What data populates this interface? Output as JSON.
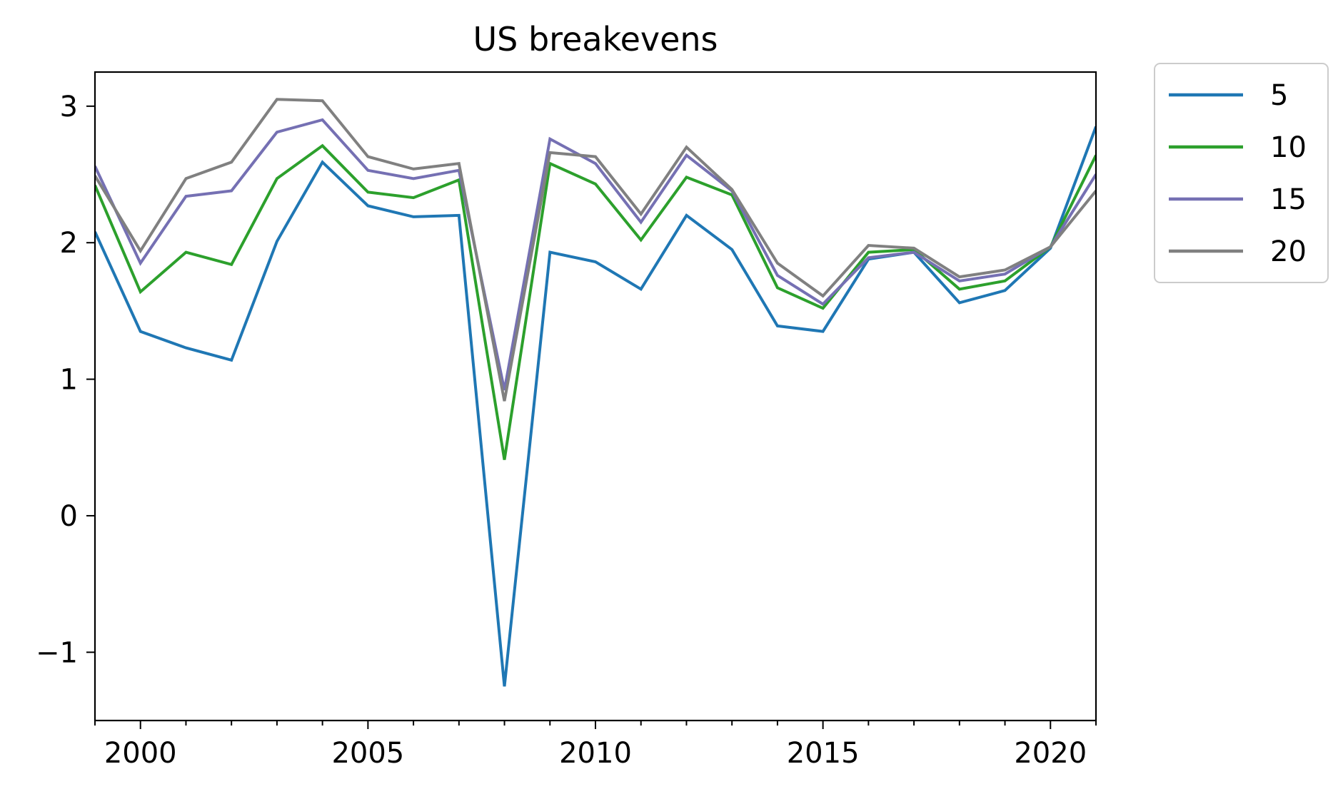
{
  "chart_data": {
    "type": "line",
    "title": "US breakevens",
    "xlabel": "",
    "ylabel": "",
    "x": [
      1999,
      2000,
      2001,
      2002,
      2003,
      2004,
      2005,
      2006,
      2007,
      2008,
      2009,
      2010,
      2011,
      2012,
      2013,
      2014,
      2015,
      2016,
      2017,
      2018,
      2019,
      2020,
      2021
    ],
    "xlim": [
      1999,
      2021
    ],
    "ylim": [
      -1.5,
      3.25
    ],
    "xticks": [
      2000,
      2005,
      2010,
      2015,
      2020
    ],
    "xtick_labels": [
      "2000",
      "2005",
      "2010",
      "2015",
      "2020"
    ],
    "yticks": [
      -1,
      0,
      1,
      2,
      3
    ],
    "ytick_labels": [
      "−1",
      "0",
      "1",
      "2",
      "3"
    ],
    "grid": false,
    "legend_position": "outside-top-right",
    "series": [
      {
        "name": "5",
        "color": "#1f77b4",
        "values": [
          2.08,
          1.35,
          1.23,
          1.14,
          2.01,
          2.59,
          2.27,
          2.19,
          2.2,
          -1.25,
          1.93,
          1.86,
          1.66,
          2.2,
          1.95,
          1.39,
          1.35,
          1.88,
          1.93,
          1.56,
          1.65,
          1.96,
          2.85
        ]
      },
      {
        "name": "10",
        "color": "#2ca02c",
        "values": [
          2.42,
          1.64,
          1.93,
          1.84,
          2.47,
          2.71,
          2.37,
          2.33,
          2.46,
          0.41,
          2.58,
          2.43,
          2.02,
          2.48,
          2.35,
          1.67,
          1.52,
          1.93,
          1.95,
          1.66,
          1.72,
          1.97,
          2.64
        ]
      },
      {
        "name": "15",
        "color": "#7570b3",
        "values": [
          2.56,
          1.85,
          2.34,
          2.38,
          2.81,
          2.9,
          2.53,
          2.47,
          2.53,
          0.92,
          2.76,
          2.58,
          2.15,
          2.64,
          2.38,
          1.76,
          1.55,
          1.89,
          1.93,
          1.72,
          1.77,
          1.97,
          2.5
        ]
      },
      {
        "name": "20",
        "color": "#808080",
        "values": [
          2.49,
          1.94,
          2.47,
          2.59,
          3.05,
          3.04,
          2.63,
          2.54,
          2.58,
          0.84,
          2.66,
          2.63,
          2.21,
          2.7,
          2.39,
          1.85,
          1.61,
          1.98,
          1.96,
          1.75,
          1.8,
          1.97,
          2.38
        ]
      }
    ]
  }
}
